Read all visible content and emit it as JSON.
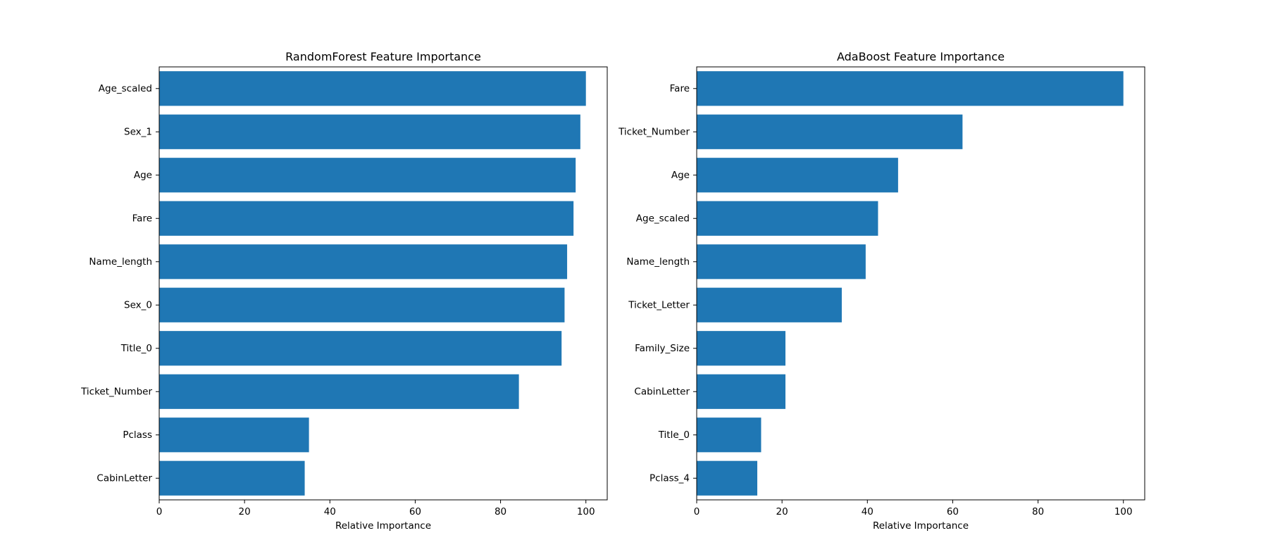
{
  "chart_data": [
    {
      "type": "bar",
      "orientation": "horizontal",
      "title": "RandomForest Feature Importance",
      "xlabel": "Relative Importance",
      "ylabel": "",
      "xlim": [
        0,
        105
      ],
      "xticks": [
        0,
        20,
        40,
        60,
        80,
        100
      ],
      "categories": [
        "Age_scaled",
        "Sex_1",
        "Age",
        "Fare",
        "Name_length",
        "Sex_0",
        "Title_0",
        "Ticket_Number",
        "Pclass",
        "CabinLetter"
      ],
      "values": [
        100,
        98.7,
        97.6,
        97.1,
        95.6,
        95.0,
        94.3,
        84.3,
        35.1,
        34.1
      ],
      "color": "#1f77b4",
      "grid": false,
      "legend": "none"
    },
    {
      "type": "bar",
      "orientation": "horizontal",
      "title": "AdaBoost Feature Importance",
      "xlabel": "Relative Importance",
      "ylabel": "",
      "xlim": [
        0,
        105
      ],
      "xticks": [
        0,
        20,
        40,
        60,
        80,
        100
      ],
      "categories": [
        "Fare",
        "Ticket_Number",
        "Age",
        "Age_scaled",
        "Name_length",
        "Ticket_Letter",
        "Family_Size",
        "CabinLetter",
        "Title_0",
        "Pclass_4"
      ],
      "values": [
        100,
        62.3,
        47.2,
        42.5,
        39.6,
        34.0,
        20.8,
        20.8,
        15.1,
        14.2
      ],
      "color": "#1f77b4",
      "grid": false,
      "legend": "none"
    }
  ]
}
